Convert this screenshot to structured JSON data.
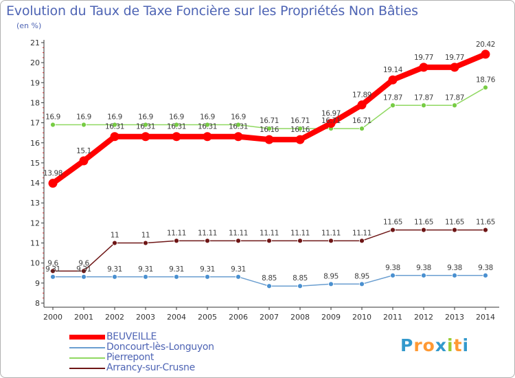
{
  "title": "Evolution du Taux de Taxe Foncière sur les Propriétés Non Bâties",
  "unit_label": "(en %)",
  "logo": {
    "text": "Proxiti",
    "letters": [
      "P",
      "r",
      "o",
      "x",
      "i",
      "t",
      "i"
    ],
    "colors": [
      "#3399cc",
      "#ff9933",
      "#ff9933",
      "#3399cc",
      "#99cc33",
      "#ff9933",
      "#3399cc"
    ]
  },
  "chart_data": {
    "type": "line",
    "title": "Evolution du Taux de Taxe Foncière sur les Propriétés Non Bâties",
    "ylabel": "(en %)",
    "xlabel": "",
    "ylim": [
      8,
      21
    ],
    "yticks": [
      "8",
      "9",
      "10",
      "11",
      "12",
      "13",
      "14",
      "15",
      "16",
      "17",
      "18",
      "19",
      "20",
      "21"
    ],
    "grid": false,
    "legend_position": "bottom-left",
    "x": [
      "2000",
      "2001",
      "2002",
      "2003",
      "2004",
      "2005",
      "2006",
      "2007",
      "2008",
      "2009",
      "2010",
      "2011",
      "2012",
      "2013",
      "2014"
    ],
    "series": [
      {
        "name": "BEUVEILLE",
        "color": "#ff0000",
        "point_color": "#ff0000",
        "label_color": "#404040",
        "emphasis": true,
        "values": [
          13.98,
          15.1,
          16.31,
          16.31,
          16.31,
          16.31,
          16.31,
          16.16,
          16.16,
          16.97,
          17.89,
          19.14,
          19.77,
          19.77,
          20.42
        ],
        "labels": [
          "13.98",
          "15.1",
          "16.31",
          "16.31",
          "16.31",
          "16.31",
          "16.31",
          "16.16",
          "16.16",
          "16.97",
          "17.89",
          "19.14",
          "19.77",
          "19.77",
          "20.42"
        ]
      },
      {
        "name": "Doncourt-lès-Longuyon",
        "color": "#6a9ed0",
        "point_color": "#4a90d0",
        "label_color": "#404040",
        "emphasis": false,
        "values": [
          9.31,
          9.31,
          9.31,
          9.31,
          9.31,
          9.31,
          9.31,
          8.85,
          8.85,
          8.95,
          8.95,
          9.38,
          9.38,
          9.38,
          9.38
        ],
        "labels": [
          "9.31",
          "9.31",
          "9.31",
          "9.31",
          "9.31",
          "9.31",
          "9.31",
          "8.85",
          "8.85",
          "8.95",
          "8.95",
          "9.38",
          "9.38",
          "9.38",
          "9.38"
        ]
      },
      {
        "name": "Pierrepont",
        "color": "#8fd860",
        "point_color": "#77cc44",
        "label_color": "#404040",
        "emphasis": false,
        "values": [
          16.9,
          16.9,
          16.9,
          16.9,
          16.9,
          16.9,
          16.9,
          16.71,
          16.71,
          16.71,
          16.71,
          17.87,
          17.87,
          17.87,
          18.76
        ],
        "labels": [
          "16.9",
          "16.9",
          "16.9",
          "16.9",
          "16.9",
          "16.9",
          "16.9",
          "16.71",
          "16.71",
          "16.71",
          "16.71",
          "17.87",
          "17.87",
          "17.87",
          "18.76"
        ]
      },
      {
        "name": "Arrancy-sur-Crusne",
        "color": "#6e1616",
        "point_color": "#6e1616",
        "label_color": "#404040",
        "emphasis": false,
        "values": [
          9.6,
          9.6,
          11,
          11,
          11.11,
          11.11,
          11.11,
          11.11,
          11.11,
          11.11,
          11.11,
          11.65,
          11.65,
          11.65,
          11.65
        ],
        "labels": [
          "9.6",
          "9.6",
          "11",
          "11",
          "11.11",
          "11.11",
          "11.11",
          "11.11",
          "11.11",
          "11.11",
          "11.11",
          "11.65",
          "11.65",
          "11.65",
          "11.65"
        ]
      }
    ]
  }
}
